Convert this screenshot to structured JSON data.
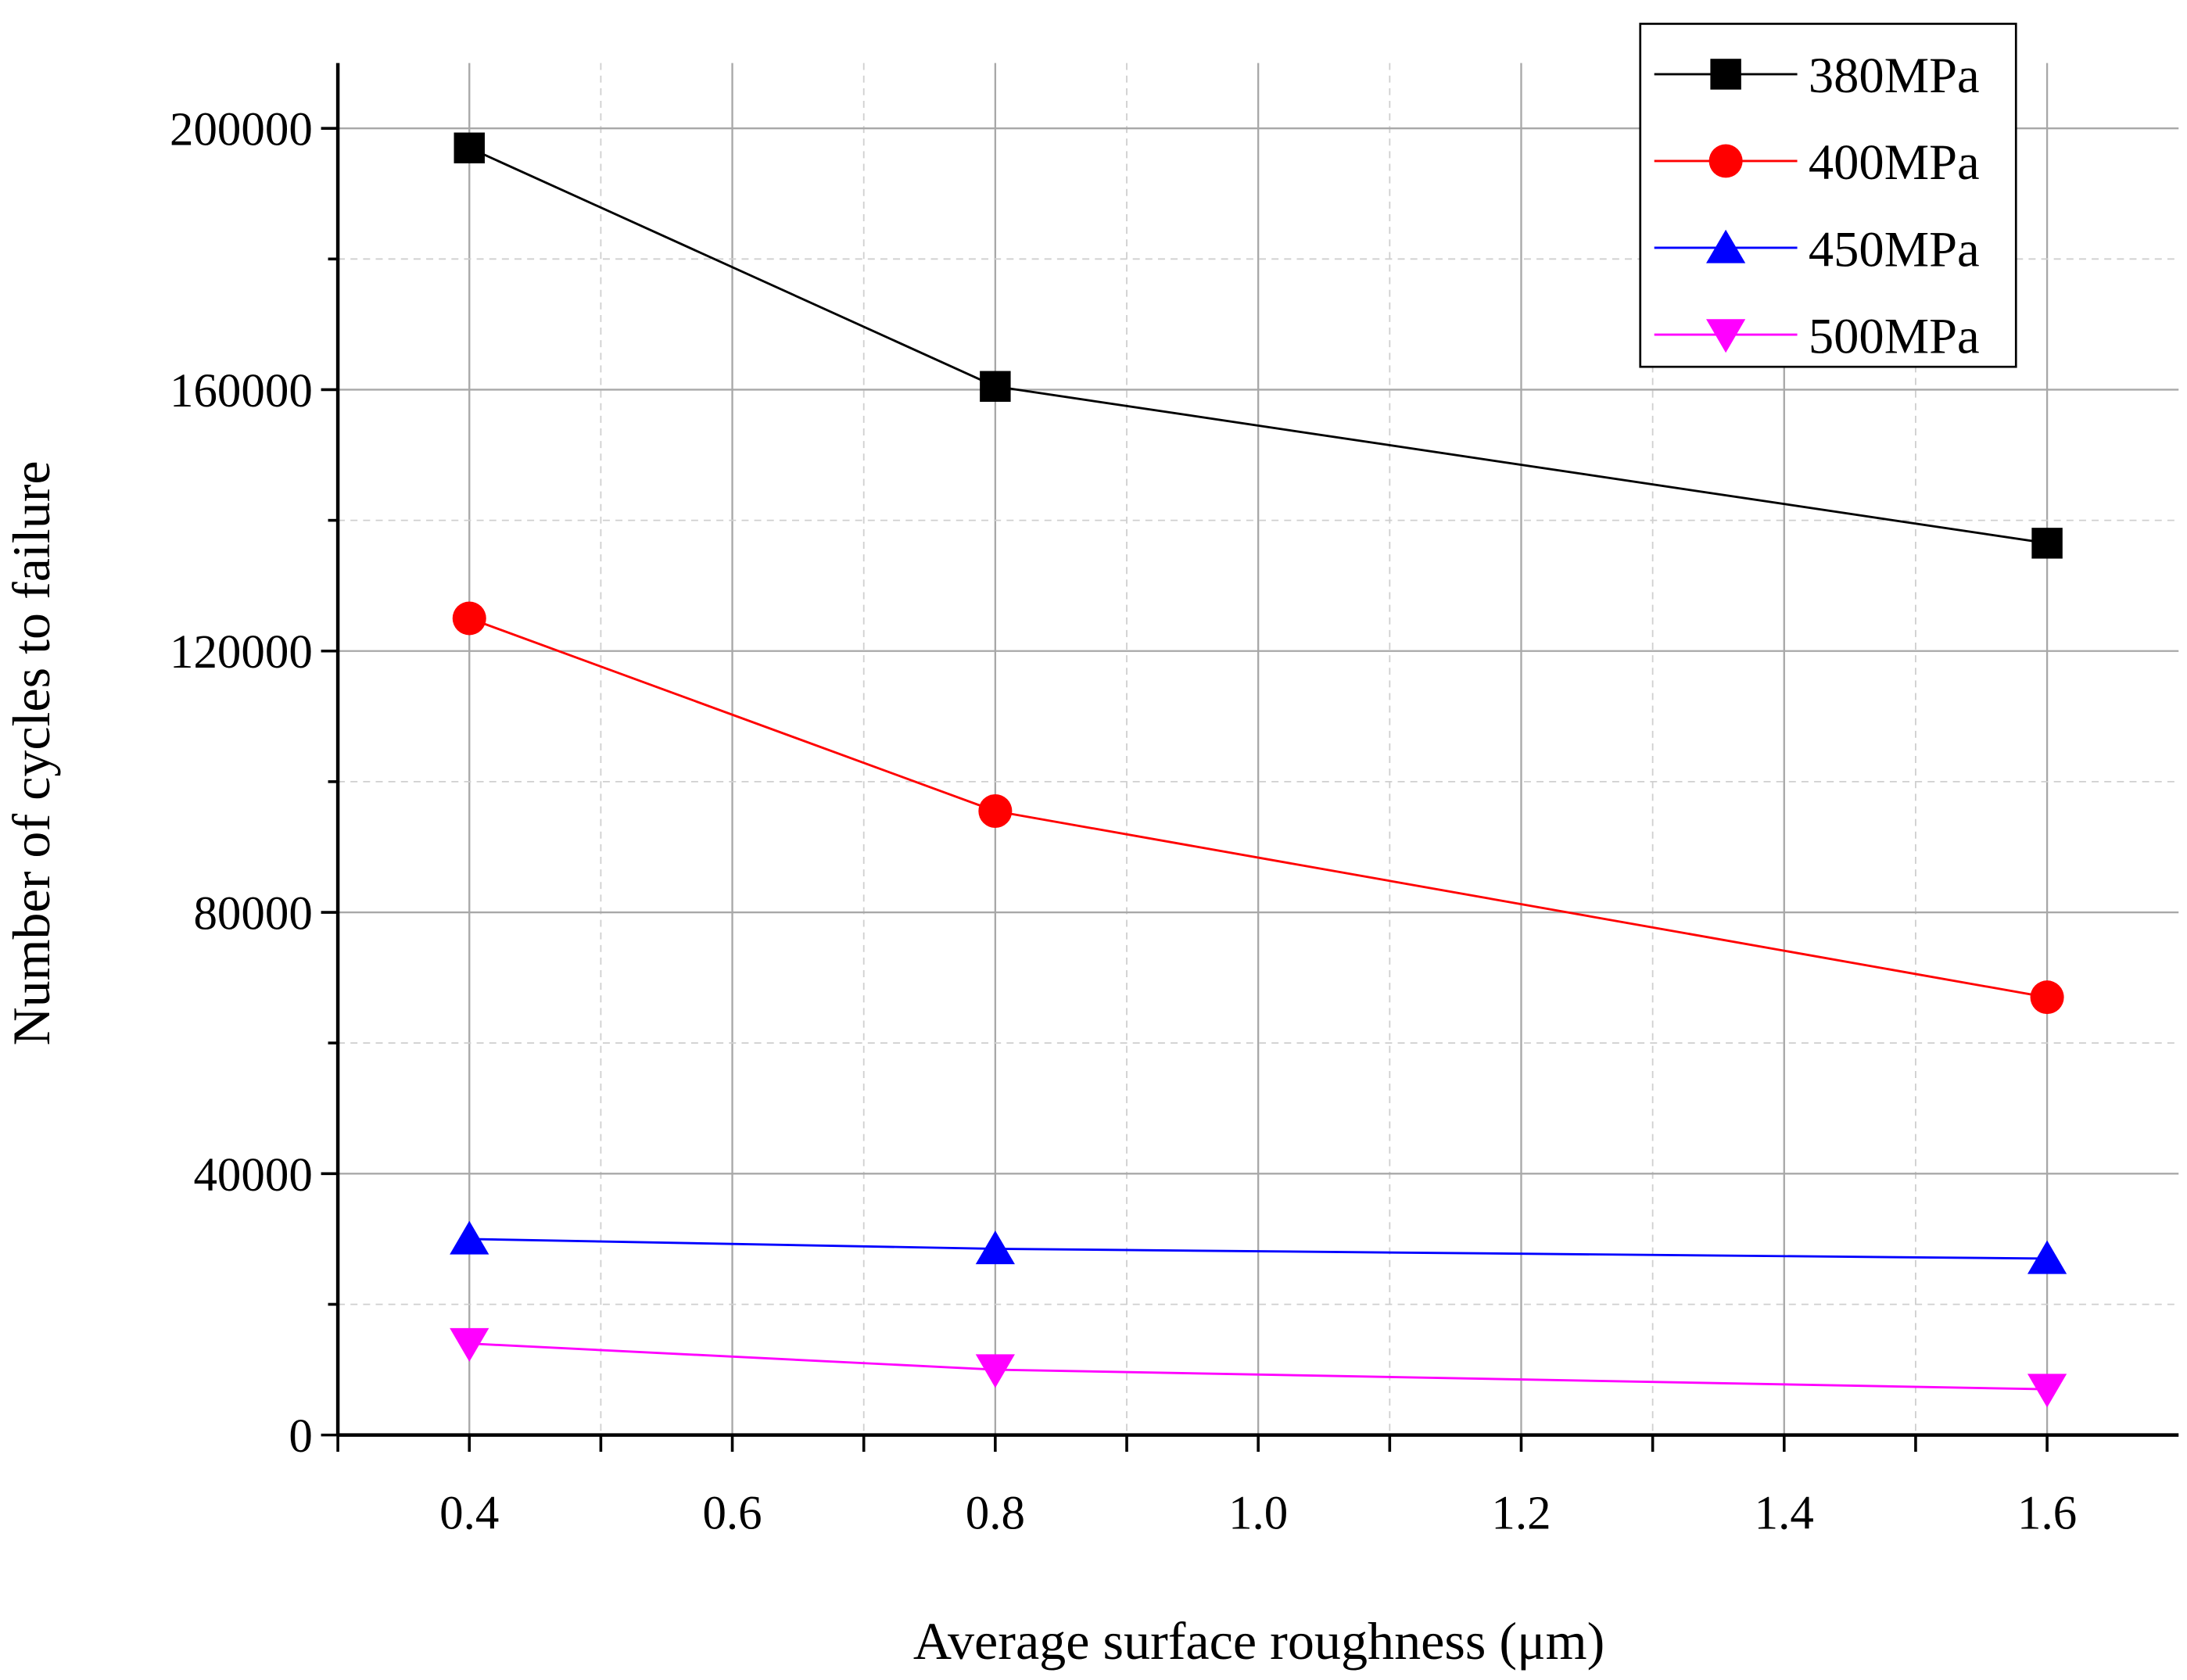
{
  "chart_data": {
    "type": "line",
    "title": "",
    "xlabel": "Average surface roughness (μm)",
    "ylabel": "Number of cycles to failure",
    "xlim": [
      0.3,
      1.7
    ],
    "ylim": [
      0,
      210000
    ],
    "x_ticks": [
      0.4,
      0.6,
      0.8,
      1.0,
      1.2,
      1.4,
      1.6
    ],
    "x_tick_labels": [
      "0.4",
      "0.6",
      "0.8",
      "1.0",
      "1.2",
      "1.4",
      "1.6"
    ],
    "y_ticks": [
      0,
      40000,
      80000,
      120000,
      160000,
      200000
    ],
    "y_tick_labels": [
      "0",
      "40000",
      "80000",
      "120000",
      "160000",
      "200000"
    ],
    "grid": true,
    "legend_position": "top-right",
    "x": [
      0.4,
      0.8,
      1.6
    ],
    "series": [
      {
        "name": "380MPa",
        "values": [
          197000,
          160500,
          136500
        ],
        "color": "#000000",
        "marker": "square"
      },
      {
        "name": "400MPa",
        "values": [
          125000,
          95500,
          67000
        ],
        "color": "#ff0000",
        "marker": "circle"
      },
      {
        "name": "450MPa",
        "values": [
          30000,
          28500,
          27000
        ],
        "color": "#0000ff",
        "marker": "triangle-up"
      },
      {
        "name": "500MPa",
        "values": [
          14000,
          10000,
          7000
        ],
        "color": "#ff00ff",
        "marker": "triangle-down"
      }
    ]
  }
}
